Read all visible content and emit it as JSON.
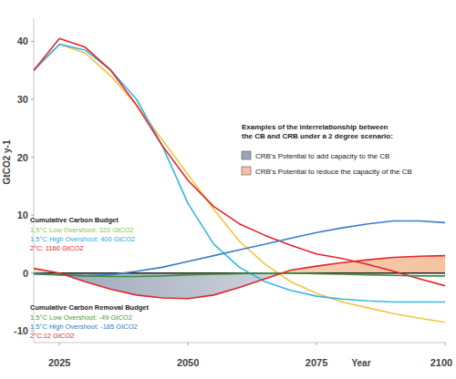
{
  "chart_data": {
    "type": "line",
    "y_label": "GtCO2 y-1",
    "x_label": "Year",
    "x": [
      2020,
      2025,
      2030,
      2035,
      2040,
      2045,
      2050,
      2055,
      2060,
      2065,
      2070,
      2075,
      2080,
      2085,
      2090,
      2095,
      2100
    ],
    "xlim": [
      2020,
      2100
    ],
    "xticks": [
      2025,
      2050,
      2075,
      2100
    ],
    "ylim": [
      -12,
      44
    ],
    "yticks": [
      -10,
      0,
      10,
      20,
      30,
      40
    ],
    "grid": false,
    "series": [
      {
        "color": "#f2c53d",
        "values": [
          35,
          39.5,
          38,
          34,
          29,
          23,
          17,
          11,
          5.5,
          1.5,
          -1.5,
          -3.5,
          -5,
          -6,
          -7,
          -7.8,
          -8.5
        ]
      },
      {
        "color": "#34b7e8",
        "values": [
          35,
          39.5,
          38.5,
          35,
          30,
          22,
          12,
          5,
          1,
          -1.5,
          -3,
          -4,
          -4.5,
          -4.8,
          -5,
          -5,
          -5
        ]
      },
      {
        "color": "#e8202a",
        "values": [
          35,
          40.5,
          39,
          35,
          29,
          22,
          16,
          11.5,
          8.5,
          6.5,
          4.8,
          3.3,
          2.5,
          1.5,
          0.3,
          -1,
          -2.2
        ]
      },
      {
        "color": "#3d7cc9",
        "values": [
          0,
          -0.3,
          -0.5,
          -0.3,
          0.3,
          1,
          2,
          3,
          4,
          5,
          6,
          7,
          7.8,
          8.5,
          9,
          9,
          8.7
        ]
      },
      {
        "color": "#3a8f3a",
        "values": [
          -0.2,
          -0.3,
          -0.5,
          -0.6,
          -0.6,
          -0.5,
          -0.3,
          -0.2,
          -0.1,
          0,
          0,
          -0.1,
          -0.2,
          -0.3,
          -0.4,
          -0.5,
          -0.5
        ]
      },
      {
        "color": "#e0282e",
        "type": "area",
        "values": [
          0.8,
          0,
          -1.5,
          -2.8,
          -3.8,
          -4.3,
          -4.4,
          -3.8,
          -2.5,
          -1,
          0.5,
          1.2,
          1.8,
          2.3,
          2.7,
          2.9,
          3
        ]
      }
    ],
    "legend_title": [
      "Examples of the interrelationship between",
      "the CB and CRB under a 2 degree scenario:"
    ],
    "areas": [
      {
        "name": "CRB's Potential to add capacity to the CB",
        "color": "#9aa5b8"
      },
      {
        "name": "CRB's Potential to reduce the capacity of the CB",
        "color": "#f4c2a0"
      }
    ],
    "annotations": [
      {
        "title": "Cumulative Carbon Budget",
        "items": [
          {
            "text": "1.5°C Low Overshoot: 320 GtCO2",
            "color": "#8dc63f"
          },
          {
            "text": "1.5°C High Overshoot: 400 GtCO2",
            "color": "#29abe2"
          },
          {
            "text": "2°C: 1160 GtCO2",
            "color": "#e8202a"
          }
        ]
      },
      {
        "title": "Cumulative Carbon Removal Budget",
        "items": [
          {
            "text": "1.5°C Low Overshoot: -49 GtCO2",
            "color": "#4a9a3a"
          },
          {
            "text": "1.5°C High Overshoot: -185 GtCO2",
            "color": "#2e7bbf"
          },
          {
            "text": "2°C:12 GtCO2",
            "color": "#e0282e"
          }
        ]
      }
    ]
  }
}
